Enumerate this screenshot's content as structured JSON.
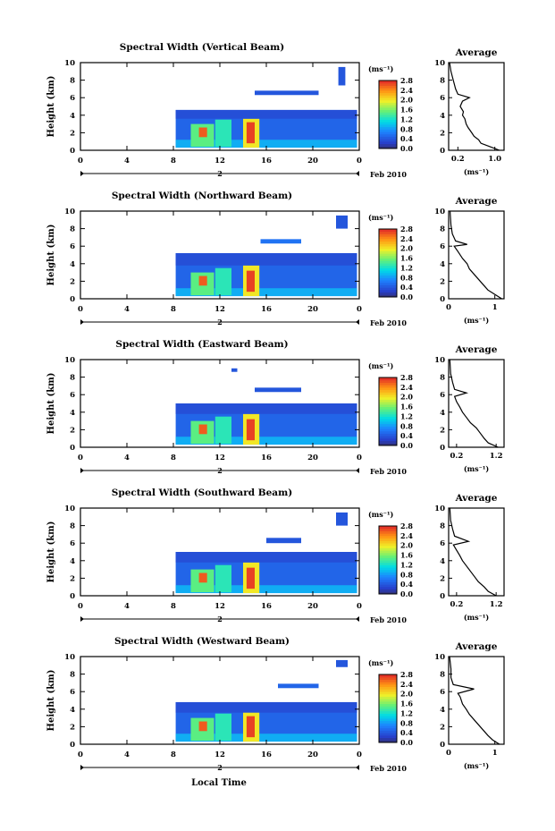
{
  "figure": {
    "xlabel": "Local Time",
    "date_label": "Feb 2010",
    "day_marker": "2",
    "cbar_unit": "(ms⁻¹)",
    "avg_title": "Average",
    "avg_xlabel": "(ms⁻¹)"
  },
  "chart_data": [
    {
      "type": "heatmap",
      "title": "Spectral Width (Vertical Beam)",
      "ylabel": "Height (km)",
      "x_ticks": [
        "0",
        "4",
        "8",
        "12",
        "16",
        "20",
        "0"
      ],
      "y_ticks": [
        "0",
        "2",
        "4",
        "6",
        "8",
        "10"
      ],
      "xlim": [
        0,
        24
      ],
      "ylim": [
        0,
        10
      ],
      "colorbar": {
        "range": [
          0,
          2.8
        ],
        "ticks": [
          "0.0",
          "0.4",
          "0.8",
          "1.2",
          "1.6",
          "2.0",
          "2.4",
          "2.8"
        ]
      },
      "cells": [
        {
          "x": [
            8.2,
            23.8
          ],
          "y": [
            0.3,
            4.6
          ],
          "v": 0.5
        },
        {
          "x": [
            8.2,
            23.8
          ],
          "y": [
            0.3,
            1.2
          ],
          "v": 0.9
        },
        {
          "x": [
            9.5,
            11.5
          ],
          "y": [
            0.4,
            3.0
          ],
          "v": 1.5
        },
        {
          "x": [
            10.2,
            10.9
          ],
          "y": [
            1.5,
            2.6
          ],
          "v": 2.6
        },
        {
          "x": [
            11.6,
            13.0
          ],
          "y": [
            0.4,
            3.5
          ],
          "v": 1.3
        },
        {
          "x": [
            14.0,
            15.4
          ],
          "y": [
            0.3,
            3.6
          ],
          "v": 2.0
        },
        {
          "x": [
            14.3,
            15.0
          ],
          "y": [
            0.8,
            3.2
          ],
          "v": 2.7
        },
        {
          "x": [
            8.2,
            23.8
          ],
          "y": [
            3.6,
            4.6
          ],
          "v": 0.35
        },
        {
          "x": [
            15.0,
            20.5
          ],
          "y": [
            6.3,
            6.8
          ],
          "v": 0.4
        },
        {
          "x": [
            22.2,
            22.8
          ],
          "y": [
            7.4,
            9.5
          ],
          "v": 0.4
        }
      ],
      "average": {
        "xticks": [
          "0.2",
          "1.0"
        ],
        "xlim": [
          0,
          1.2
        ],
        "profile": [
          [
            1.1,
            0
          ],
          [
            0.9,
            0.4
          ],
          [
            0.7,
            0.8
          ],
          [
            0.65,
            1.2
          ],
          [
            0.55,
            1.6
          ],
          [
            0.5,
            2.0
          ],
          [
            0.42,
            2.6
          ],
          [
            0.38,
            3.0
          ],
          [
            0.35,
            3.6
          ],
          [
            0.3,
            4.0
          ],
          [
            0.32,
            4.4
          ],
          [
            0.25,
            5.0
          ],
          [
            0.3,
            5.6
          ],
          [
            0.45,
            6.0
          ],
          [
            0.2,
            6.4
          ],
          [
            0.15,
            7.0
          ],
          [
            0.1,
            8.0
          ],
          [
            0.05,
            9.0
          ],
          [
            0.02,
            10.0
          ]
        ]
      }
    },
    {
      "type": "heatmap",
      "title": "Spectral Width (Northward Beam)",
      "ylabel": "Height (km)",
      "x_ticks": [
        "0",
        "4",
        "8",
        "12",
        "16",
        "20",
        "0"
      ],
      "y_ticks": [
        "0",
        "2",
        "4",
        "6",
        "8",
        "10"
      ],
      "xlim": [
        0,
        24
      ],
      "ylim": [
        0,
        10
      ],
      "colorbar": {
        "range": [
          0,
          2.8
        ],
        "ticks": [
          "0.0",
          "0.4",
          "0.8",
          "1.2",
          "1.6",
          "2.0",
          "2.4",
          "2.8"
        ]
      },
      "cells": [
        {
          "x": [
            8.2,
            23.8
          ],
          "y": [
            0.3,
            5.2
          ],
          "v": 0.5
        },
        {
          "x": [
            8.2,
            23.8
          ],
          "y": [
            0.3,
            1.2
          ],
          "v": 0.9
        },
        {
          "x": [
            9.5,
            11.5
          ],
          "y": [
            0.4,
            3.0
          ],
          "v": 1.5
        },
        {
          "x": [
            10.2,
            10.9
          ],
          "y": [
            1.5,
            2.6
          ],
          "v": 2.6
        },
        {
          "x": [
            11.6,
            13.0
          ],
          "y": [
            0.4,
            3.5
          ],
          "v": 1.3
        },
        {
          "x": [
            14.0,
            15.4
          ],
          "y": [
            0.3,
            3.8
          ],
          "v": 2.0
        },
        {
          "x": [
            14.3,
            15.0
          ],
          "y": [
            0.8,
            3.2
          ],
          "v": 2.7
        },
        {
          "x": [
            8.2,
            23.8
          ],
          "y": [
            3.8,
            5.2
          ],
          "v": 0.35
        },
        {
          "x": [
            15.5,
            19.0
          ],
          "y": [
            6.3,
            6.8
          ],
          "v": 0.6
        },
        {
          "x": [
            22.0,
            23.0
          ],
          "y": [
            8.0,
            9.5
          ],
          "v": 0.4
        }
      ],
      "average": {
        "xticks": [
          "0",
          "1"
        ],
        "xlim": [
          0,
          1.2
        ],
        "profile": [
          [
            1.15,
            0
          ],
          [
            1.0,
            0.5
          ],
          [
            0.85,
            1.0
          ],
          [
            0.75,
            1.6
          ],
          [
            0.65,
            2.2
          ],
          [
            0.55,
            2.8
          ],
          [
            0.45,
            3.4
          ],
          [
            0.4,
            4.0
          ],
          [
            0.3,
            4.6
          ],
          [
            0.2,
            5.4
          ],
          [
            0.12,
            6.0
          ],
          [
            0.4,
            6.2
          ],
          [
            0.15,
            6.6
          ],
          [
            0.08,
            7.4
          ],
          [
            0.05,
            8.4
          ],
          [
            0.03,
            10.0
          ]
        ]
      }
    },
    {
      "type": "heatmap",
      "title": "Spectral Width (Eastward Beam)",
      "ylabel": "Height (km)",
      "x_ticks": [
        "0",
        "4",
        "8",
        "12",
        "16",
        "20",
        "0"
      ],
      "y_ticks": [
        "0",
        "2",
        "4",
        "6",
        "8",
        "10"
      ],
      "xlim": [
        0,
        24
      ],
      "ylim": [
        0,
        10
      ],
      "colorbar": {
        "range": [
          0,
          2.8
        ],
        "ticks": [
          "0.0",
          "0.4",
          "0.8",
          "1.2",
          "1.6",
          "2.0",
          "2.4",
          "2.8"
        ]
      },
      "cells": [
        {
          "x": [
            8.2,
            23.8
          ],
          "y": [
            0.3,
            5.0
          ],
          "v": 0.5
        },
        {
          "x": [
            8.2,
            23.8
          ],
          "y": [
            0.3,
            1.2
          ],
          "v": 0.9
        },
        {
          "x": [
            9.5,
            11.5
          ],
          "y": [
            0.4,
            3.0
          ],
          "v": 1.5
        },
        {
          "x": [
            10.2,
            10.9
          ],
          "y": [
            1.5,
            2.6
          ],
          "v": 2.6
        },
        {
          "x": [
            11.6,
            13.0
          ],
          "y": [
            0.4,
            3.5
          ],
          "v": 1.3
        },
        {
          "x": [
            14.0,
            15.4
          ],
          "y": [
            0.3,
            3.8
          ],
          "v": 2.0
        },
        {
          "x": [
            14.3,
            15.0
          ],
          "y": [
            0.8,
            3.2
          ],
          "v": 2.7
        },
        {
          "x": [
            8.2,
            23.8
          ],
          "y": [
            3.8,
            5.0
          ],
          "v": 0.35
        },
        {
          "x": [
            15.0,
            19.0
          ],
          "y": [
            6.3,
            6.8
          ],
          "v": 0.4
        },
        {
          "x": [
            13.0,
            13.5
          ],
          "y": [
            8.6,
            9.0
          ],
          "v": 0.4
        }
      ],
      "average": {
        "xticks": [
          "0.2",
          "1.2"
        ],
        "xlim": [
          0,
          1.4
        ],
        "profile": [
          [
            1.25,
            0
          ],
          [
            1.0,
            0.5
          ],
          [
            0.9,
            1.0
          ],
          [
            0.8,
            1.6
          ],
          [
            0.7,
            2.2
          ],
          [
            0.55,
            2.8
          ],
          [
            0.45,
            3.4
          ],
          [
            0.35,
            4.0
          ],
          [
            0.28,
            4.6
          ],
          [
            0.2,
            5.2
          ],
          [
            0.15,
            5.8
          ],
          [
            0.45,
            6.2
          ],
          [
            0.15,
            6.6
          ],
          [
            0.1,
            7.4
          ],
          [
            0.05,
            8.4
          ],
          [
            0.03,
            10.0
          ]
        ]
      }
    },
    {
      "type": "heatmap",
      "title": "Spectral Width (Southward Beam)",
      "ylabel": "Height (km)",
      "x_ticks": [
        "0",
        "4",
        "8",
        "12",
        "16",
        "20",
        "0"
      ],
      "y_ticks": [
        "0",
        "2",
        "4",
        "6",
        "8",
        "10"
      ],
      "xlim": [
        0,
        24
      ],
      "ylim": [
        0,
        10
      ],
      "colorbar": {
        "range": [
          0,
          2.8
        ],
        "ticks": [
          "0.0",
          "0.4",
          "0.8",
          "1.2",
          "1.6",
          "2.0",
          "2.4",
          "2.8"
        ]
      },
      "cells": [
        {
          "x": [
            8.2,
            23.8
          ],
          "y": [
            0.3,
            5.0
          ],
          "v": 0.5
        },
        {
          "x": [
            8.2,
            23.8
          ],
          "y": [
            0.3,
            1.2
          ],
          "v": 0.9
        },
        {
          "x": [
            9.5,
            11.5
          ],
          "y": [
            0.4,
            3.0
          ],
          "v": 1.5
        },
        {
          "x": [
            10.2,
            10.9
          ],
          "y": [
            1.5,
            2.6
          ],
          "v": 2.6
        },
        {
          "x": [
            11.6,
            13.0
          ],
          "y": [
            0.4,
            3.5
          ],
          "v": 1.3
        },
        {
          "x": [
            14.0,
            15.4
          ],
          "y": [
            0.3,
            3.8
          ],
          "v": 2.0
        },
        {
          "x": [
            14.3,
            15.0
          ],
          "y": [
            0.8,
            3.2
          ],
          "v": 2.7
        },
        {
          "x": [
            8.2,
            23.8
          ],
          "y": [
            3.8,
            5.0
          ],
          "v": 0.35
        },
        {
          "x": [
            16.0,
            19.0
          ],
          "y": [
            6.0,
            6.6
          ],
          "v": 0.4
        },
        {
          "x": [
            22.0,
            23.0
          ],
          "y": [
            8.0,
            9.5
          ],
          "v": 0.4
        }
      ],
      "average": {
        "xticks": [
          "0.2",
          "1.2"
        ],
        "xlim": [
          0,
          1.4
        ],
        "profile": [
          [
            1.2,
            0
          ],
          [
            1.0,
            0.5
          ],
          [
            0.9,
            1.0
          ],
          [
            0.75,
            1.6
          ],
          [
            0.65,
            2.2
          ],
          [
            0.55,
            2.8
          ],
          [
            0.45,
            3.4
          ],
          [
            0.35,
            4.0
          ],
          [
            0.28,
            4.6
          ],
          [
            0.2,
            5.2
          ],
          [
            0.12,
            5.8
          ],
          [
            0.5,
            6.2
          ],
          [
            0.15,
            6.8
          ],
          [
            0.1,
            7.6
          ],
          [
            0.05,
            8.6
          ],
          [
            0.03,
            10.0
          ]
        ]
      }
    },
    {
      "type": "heatmap",
      "title": "Spectral Width (Westward Beam)",
      "ylabel": "Height (km)",
      "x_ticks": [
        "0",
        "4",
        "8",
        "12",
        "16",
        "20",
        "0"
      ],
      "y_ticks": [
        "0",
        "2",
        "4",
        "6",
        "8",
        "10"
      ],
      "xlim": [
        0,
        24
      ],
      "ylim": [
        0,
        10
      ],
      "colorbar": {
        "range": [
          0,
          2.8
        ],
        "ticks": [
          "0.0",
          "0.4",
          "0.8",
          "1.2",
          "1.6",
          "2.0",
          "2.4",
          "2.8"
        ]
      },
      "cells": [
        {
          "x": [
            8.2,
            23.8
          ],
          "y": [
            0.3,
            4.8
          ],
          "v": 0.5
        },
        {
          "x": [
            8.2,
            23.8
          ],
          "y": [
            0.3,
            1.2
          ],
          "v": 0.9
        },
        {
          "x": [
            9.5,
            11.5
          ],
          "y": [
            0.4,
            3.0
          ],
          "v": 1.5
        },
        {
          "x": [
            10.2,
            10.9
          ],
          "y": [
            1.5,
            2.6
          ],
          "v": 2.6
        },
        {
          "x": [
            11.6,
            13.0
          ],
          "y": [
            0.4,
            3.5
          ],
          "v": 1.3
        },
        {
          "x": [
            14.0,
            15.4
          ],
          "y": [
            0.3,
            3.8
          ],
          "v": 2.0
        },
        {
          "x": [
            14.3,
            15.0
          ],
          "y": [
            0.8,
            3.2
          ],
          "v": 2.7
        },
        {
          "x": [
            8.2,
            23.8
          ],
          "y": [
            3.6,
            4.8
          ],
          "v": 0.35
        },
        {
          "x": [
            17.0,
            20.5
          ],
          "y": [
            6.4,
            6.9
          ],
          "v": 0.5
        },
        {
          "x": [
            22.0,
            23.0
          ],
          "y": [
            8.8,
            9.6
          ],
          "v": 0.4
        }
      ],
      "average": {
        "xticks": [
          "0",
          "1"
        ],
        "xlim": [
          0,
          1.2
        ],
        "profile": [
          [
            1.1,
            0
          ],
          [
            0.95,
            0.5
          ],
          [
            0.85,
            1.0
          ],
          [
            0.75,
            1.6
          ],
          [
            0.65,
            2.2
          ],
          [
            0.55,
            2.8
          ],
          [
            0.45,
            3.4
          ],
          [
            0.38,
            4.0
          ],
          [
            0.3,
            4.6
          ],
          [
            0.25,
            5.4
          ],
          [
            0.2,
            5.8
          ],
          [
            0.55,
            6.3
          ],
          [
            0.1,
            6.8
          ],
          [
            0.05,
            7.6
          ],
          [
            0.05,
            8.6
          ],
          [
            0.02,
            10.0
          ]
        ]
      }
    }
  ]
}
